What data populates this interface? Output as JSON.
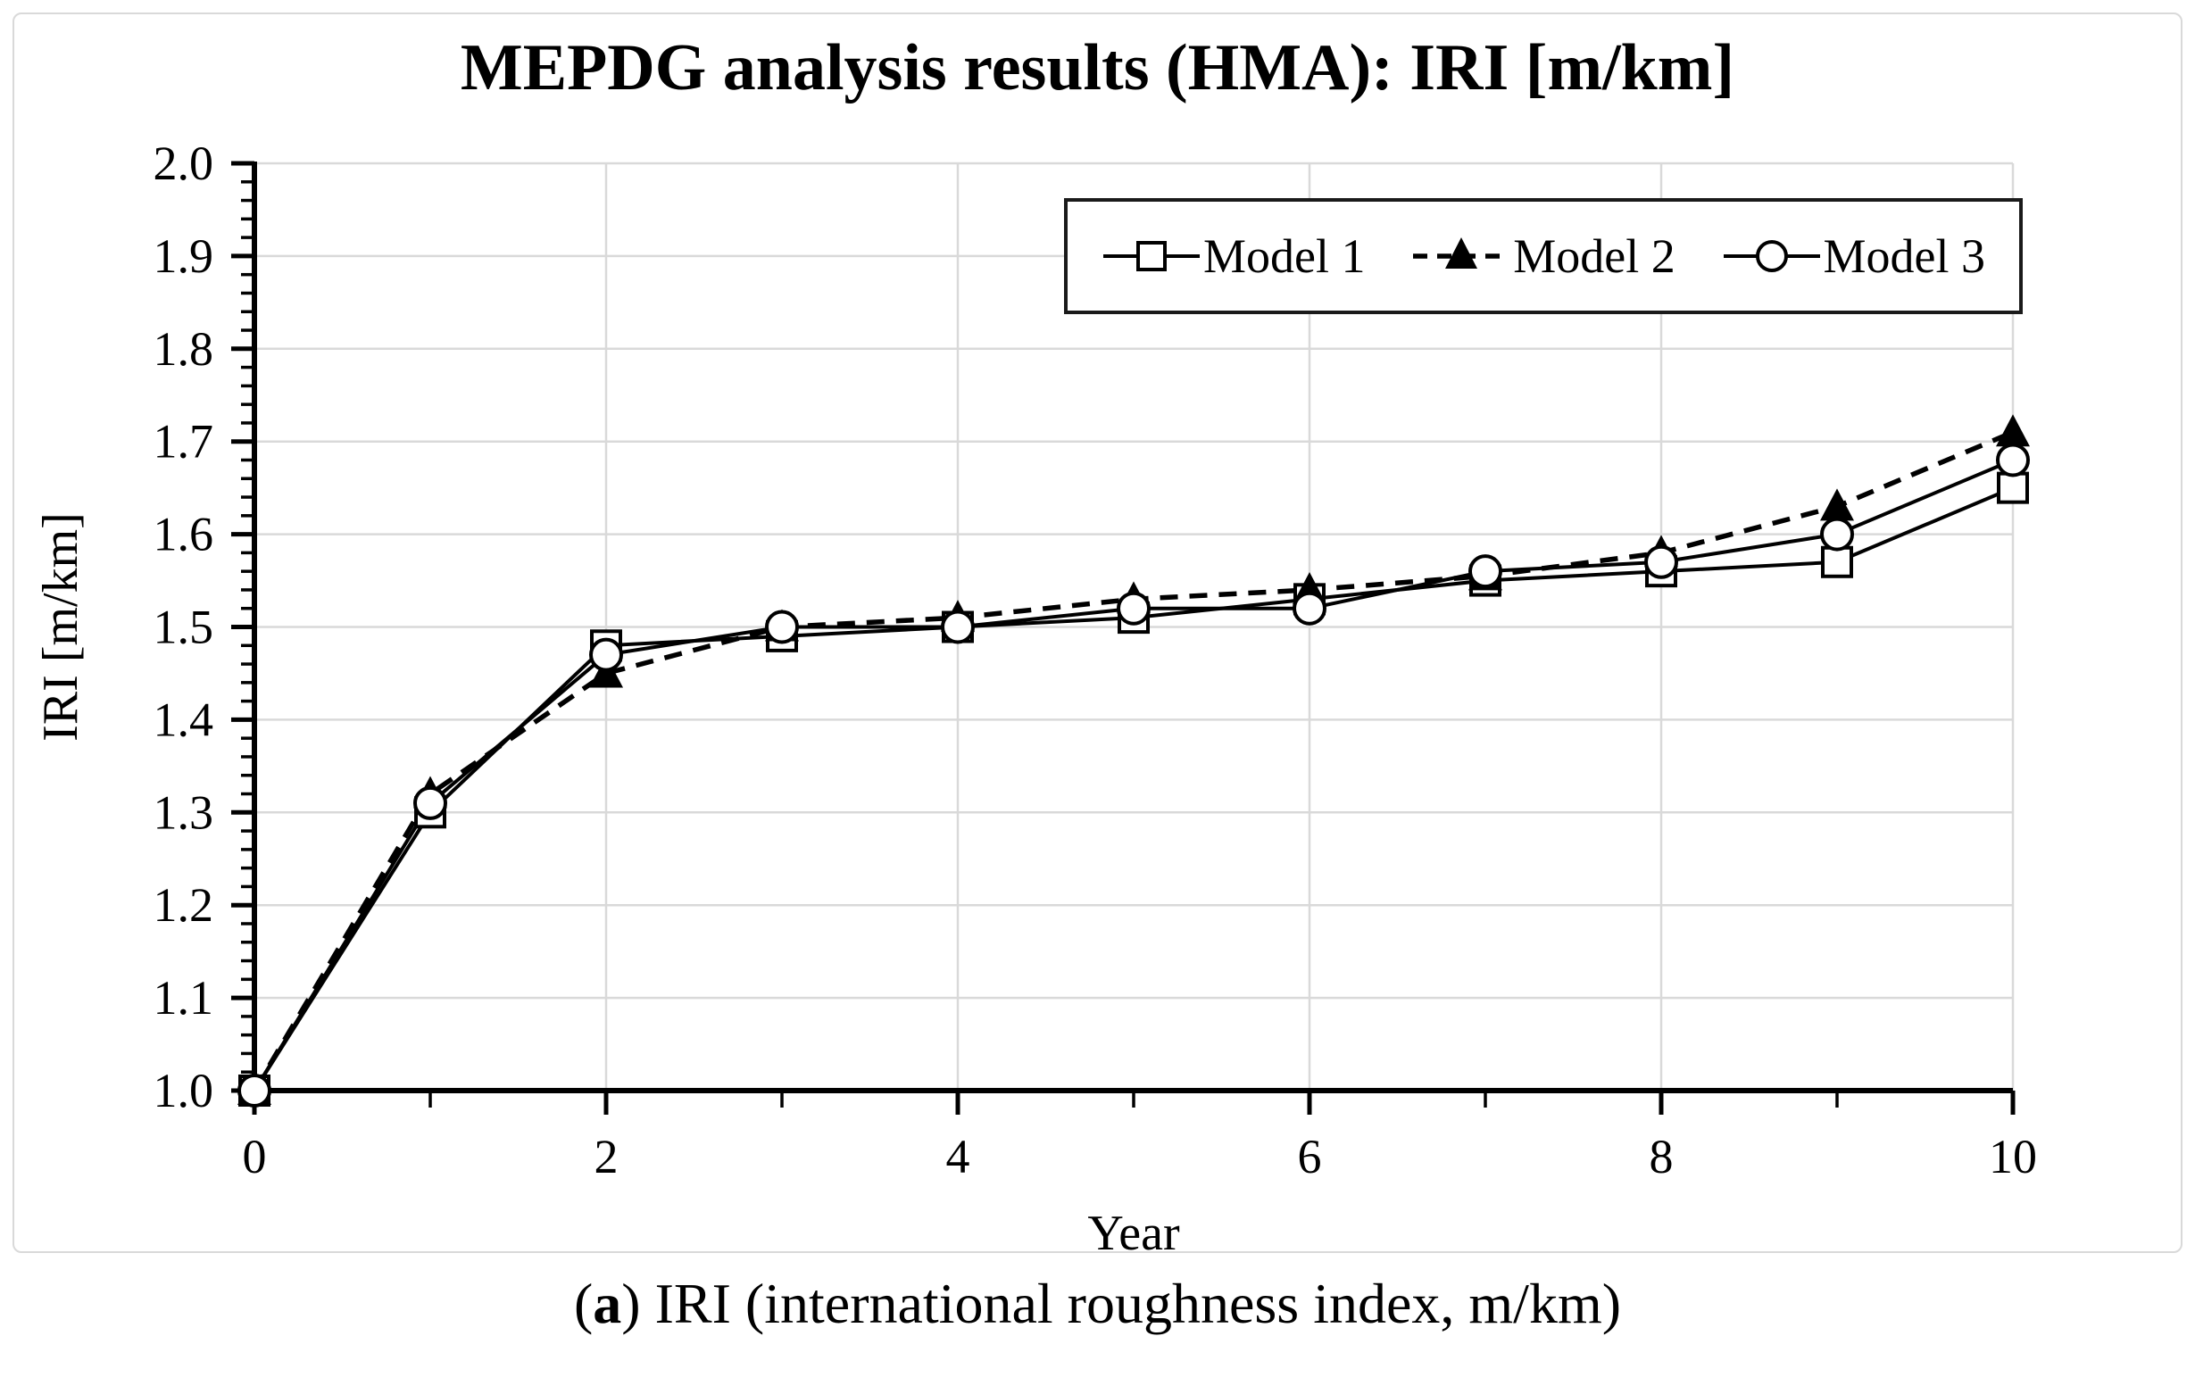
{
  "chart_data": {
    "type": "line",
    "title": "MEPDG analysis results (HMA): IRI [m/km]",
    "xlabel": "Year",
    "ylabel": "IRI [m/km]",
    "x": [
      0,
      1,
      2,
      3,
      4,
      5,
      6,
      7,
      8,
      9,
      10
    ],
    "series": [
      {
        "name": "Model 1",
        "marker": "open-square",
        "line": "solid",
        "values": [
          1.0,
          1.3,
          1.48,
          1.49,
          1.5,
          1.51,
          1.53,
          1.55,
          1.56,
          1.57,
          1.65
        ]
      },
      {
        "name": "Model 2",
        "marker": "filled-triangle",
        "line": "dashed",
        "values": [
          1.0,
          1.32,
          1.45,
          1.5,
          1.51,
          1.53,
          1.54,
          1.555,
          1.58,
          1.63,
          1.71
        ]
      },
      {
        "name": "Model 3",
        "marker": "open-circle",
        "line": "solid",
        "values": [
          1.0,
          1.31,
          1.47,
          1.5,
          1.5,
          1.52,
          1.52,
          1.56,
          1.57,
          1.6,
          1.68
        ]
      }
    ],
    "xlim": [
      0,
      10
    ],
    "ylim": [
      1.0,
      2.0
    ],
    "x_labeled_ticks": [
      0,
      2,
      4,
      6,
      8,
      10
    ],
    "x_minor_tick_step": 1,
    "y_tick_step": 0.1,
    "y_minor_tick_step": 0.02,
    "grid": true,
    "legend_position": "top-right-inside",
    "colors": {
      "line": "#000000",
      "grid": "#d9d9d9",
      "axis": "#000000"
    }
  },
  "caption": {
    "prefix": "(",
    "bold": "a",
    "suffix": ") IRI (international roughness index, m/km)"
  }
}
